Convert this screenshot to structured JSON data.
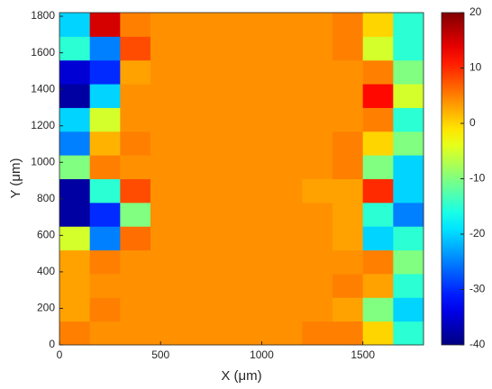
{
  "chart_data": {
    "type": "heatmap",
    "x_label": "X (μm)",
    "y_label": "Y (μm)",
    "x": [
      75,
      225,
      375,
      525,
      675,
      825,
      975,
      1125,
      1275,
      1425,
      1575,
      1725
    ],
    "y": [
      65,
      195,
      325,
      455,
      585,
      715,
      845,
      975,
      1105,
      1235,
      1365,
      1495,
      1625,
      1755
    ],
    "z": [
      [
        5,
        4,
        4,
        4,
        4,
        4,
        4,
        4,
        5,
        5,
        0,
        -15
      ],
      [
        3,
        5,
        4,
        4,
        4,
        4,
        4,
        4,
        4,
        3,
        -10,
        -20
      ],
      [
        3,
        4,
        4,
        4,
        4,
        4,
        4,
        4,
        4,
        5,
        3,
        -15
      ],
      [
        3,
        5,
        4,
        4,
        4,
        4,
        4,
        4,
        4,
        4,
        5,
        -10
      ],
      [
        -5,
        -25,
        6,
        4,
        4,
        4,
        4,
        4,
        4,
        3,
        -20,
        -15
      ],
      [
        -38,
        -30,
        -10,
        4,
        4,
        4,
        4,
        4,
        4,
        3,
        -15,
        -25
      ],
      [
        -38,
        -15,
        8,
        4,
        4,
        4,
        4,
        4,
        3,
        3,
        10,
        -20
      ],
      [
        -10,
        5,
        4,
        4,
        4,
        4,
        4,
        4,
        4,
        5,
        -10,
        -20
      ],
      [
        -25,
        2,
        5,
        4,
        4,
        4,
        4,
        4,
        4,
        5,
        0,
        -10
      ],
      [
        -20,
        -5,
        4,
        4,
        4,
        4,
        4,
        4,
        4,
        4,
        5,
        -15
      ],
      [
        -38,
        -20,
        4,
        4,
        4,
        4,
        4,
        4,
        4,
        4,
        12,
        -5
      ],
      [
        -35,
        -30,
        3,
        4,
        4,
        4,
        4,
        4,
        4,
        4,
        5,
        -10
      ],
      [
        -15,
        -25,
        8,
        4,
        4,
        4,
        4,
        4,
        4,
        5,
        -5,
        -15
      ],
      [
        -20,
        15,
        5,
        4,
        4,
        4,
        4,
        4,
        4,
        5,
        0,
        -15
      ]
    ],
    "xlim": [
      0,
      1800
    ],
    "ylim": [
      0,
      1820
    ],
    "xticks": [
      0,
      500,
      1000,
      1500
    ],
    "yticks": [
      0,
      200,
      400,
      600,
      800,
      1000,
      1200,
      1400,
      1600,
      1800
    ],
    "colormap": "jet",
    "clim": [
      -40,
      20
    ],
    "cticks": [
      -40,
      -30,
      -20,
      -10,
      0,
      10,
      20
    ]
  }
}
